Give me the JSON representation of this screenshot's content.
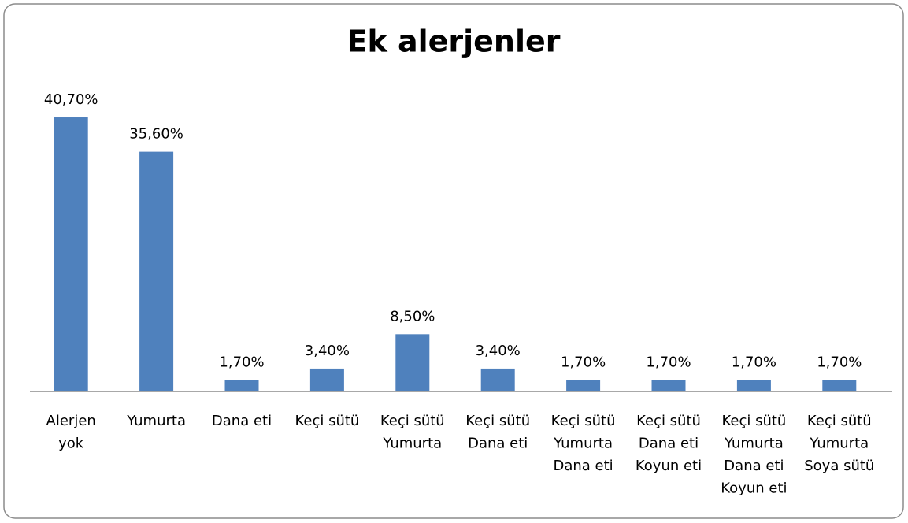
{
  "chart_data": {
    "type": "bar",
    "title": "Ek alerjenler",
    "categories": [
      [
        "Alerjen",
        "yok"
      ],
      [
        "Yumurta"
      ],
      [
        "Dana eti"
      ],
      [
        "Keçi sütü"
      ],
      [
        "Keçi sütü",
        "Yumurta"
      ],
      [
        "Keçi sütü",
        "Dana eti"
      ],
      [
        "Keçi sütü",
        "Yumurta",
        "Dana eti"
      ],
      [
        "Keçi sütü",
        "Dana eti",
        "Koyun eti"
      ],
      [
        "Keçi sütü",
        "Yumurta",
        "Dana eti",
        "Koyun eti"
      ],
      [
        "Keçi sütü",
        "Yumurta",
        "Soya sütü"
      ]
    ],
    "values": [
      40.7,
      35.6,
      1.7,
      3.4,
      8.5,
      3.4,
      1.7,
      1.7,
      1.7,
      1.7
    ],
    "value_labels": [
      "40,70%",
      "35,60%",
      "1,70%",
      "3,40%",
      "8,50%",
      "3,40%",
      "1,70%",
      "1,70%",
      "1,70%",
      "1,70%"
    ],
    "color": "#4f81bd"
  }
}
